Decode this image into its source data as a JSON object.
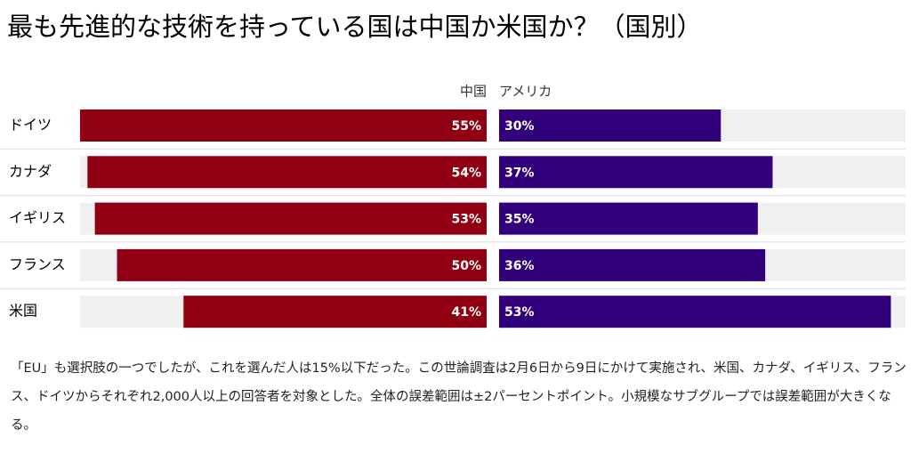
{
  "chart_data": {
    "type": "bar",
    "title": "最も先進的な技術を持っている国は中国か米国か？（国別）",
    "categories": [
      "ドイツ",
      "カナダ",
      "イギリス",
      "フランス",
      "米国"
    ],
    "series": [
      {
        "name": "中国",
        "color": "#900012",
        "values": [
          55,
          54,
          53,
          50,
          41
        ],
        "value_labels": [
          "55%",
          "54%",
          "53%",
          "50%",
          "41%"
        ]
      },
      {
        "name": "アメリカ",
        "color": "#33007b",
        "values": [
          30,
          37,
          35,
          36,
          53
        ],
        "value_labels": [
          "30%",
          "37%",
          "35%",
          "36%",
          "53%"
        ]
      }
    ],
    "xlim": [
      0,
      55
    ],
    "note": "「EU」も選択肢の一つでしたが、これを選んだ人は15%以下だった。この世論調査は2月6日から9日にかけて実施され、米国、カナダ、イギリス、フランス、ドイツからそれぞれ2,000人以上の回答者を対象とした。全体の誤差範囲は±2パーセントポイント。小規模なサブグループでは誤差範囲が大きくなる。"
  }
}
